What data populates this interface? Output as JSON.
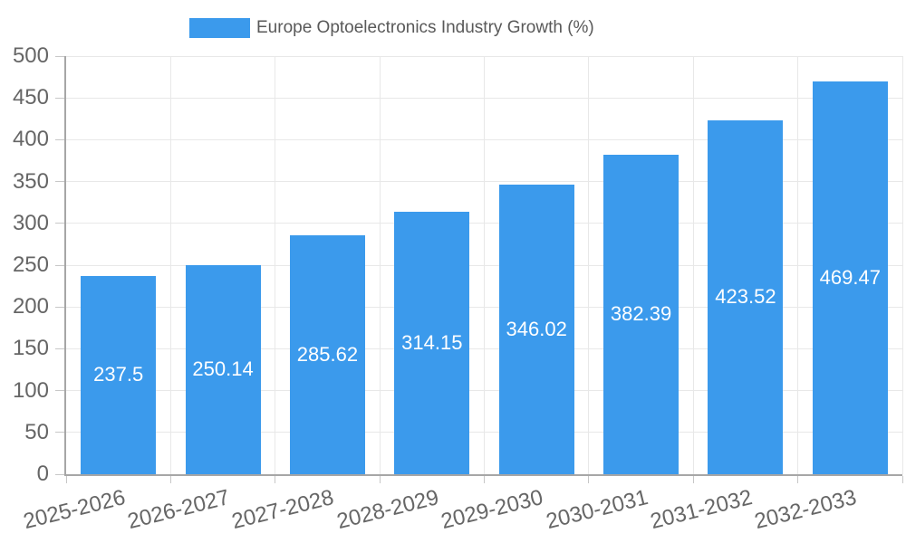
{
  "chart_data": {
    "type": "bar",
    "title": "Europe Optoelectronics Industry Growth (%)",
    "legend": {
      "label": "Europe Optoelectronics Industry Growth (%)",
      "position": "top"
    },
    "categories": [
      "2025-2026",
      "2026-2027",
      "2027-2028",
      "2028-2029",
      "2029-2030",
      "2030-2031",
      "2031-2032",
      "2032-2033"
    ],
    "values": [
      237.5,
      250.14,
      285.62,
      314.15,
      346.02,
      382.39,
      423.52,
      469.47
    ],
    "value_labels": [
      "237.5",
      "250.14",
      "285.62",
      "314.15",
      "346.02",
      "382.39",
      "423.52",
      "469.47"
    ],
    "xlabel": "",
    "ylabel": "",
    "ylim": [
      0,
      500
    ],
    "y_ticks": [
      0,
      50,
      100,
      150,
      200,
      250,
      300,
      350,
      400,
      450,
      500
    ],
    "grid": true,
    "x_tick_rotation_deg": -14,
    "colors": {
      "bar": "#3B9AEC",
      "grid": "#E8E8E8",
      "axis": "#A6A6A6",
      "tick": "#C7C7C7",
      "tick_text": "#666666",
      "legend_text": "#595959",
      "value_text": "#FFFFFF",
      "background": "#FFFFFF"
    }
  }
}
